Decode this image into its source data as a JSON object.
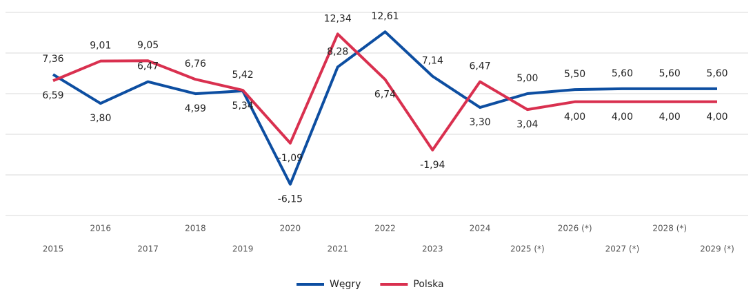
{
  "chart_data": {
    "type": "line",
    "categories": [
      "2015",
      "2016",
      "2017",
      "2018",
      "2019",
      "2020",
      "2021",
      "2022",
      "2023",
      "2024",
      "2025 (*)",
      "2026 (*)",
      "2027 (*)",
      "2028 (*)",
      "2029 (*)"
    ],
    "series": [
      {
        "name": "Węgry",
        "color": "#0d4ea1",
        "values": [
          7.36,
          3.8,
          6.47,
          4.99,
          5.34,
          -6.15,
          8.28,
          12.61,
          7.14,
          3.3,
          5.0,
          5.5,
          5.6,
          5.6,
          5.6
        ],
        "value_labels": [
          "7,36",
          "3,80",
          "6,47",
          "4,99",
          "5,34",
          "-6,15",
          "8,28",
          "12,61",
          "7,14",
          "3,30",
          "5,00",
          "5,50",
          "5,60",
          "5,60",
          "5,60"
        ]
      },
      {
        "name": "Polska",
        "color": "#d9304f",
        "values": [
          6.59,
          9.01,
          9.05,
          6.76,
          5.42,
          -1.09,
          12.34,
          6.74,
          -1.94,
          6.47,
          3.04,
          4.0,
          4.0,
          4.0,
          4.0
        ],
        "value_labels": [
          "6,59",
          "9,01",
          "9,05",
          "6,76",
          "5,42",
          "-1,09",
          "12,34",
          "6,74",
          "-1,94",
          "6,47",
          "3,04",
          "4,00",
          "4,00",
          "4,00",
          "4,00"
        ]
      }
    ],
    "ylim": [
      -10,
      15
    ],
    "yticks": [
      -10,
      -5,
      0,
      5,
      10,
      15
    ],
    "grid": true,
    "legend": "bottom"
  }
}
